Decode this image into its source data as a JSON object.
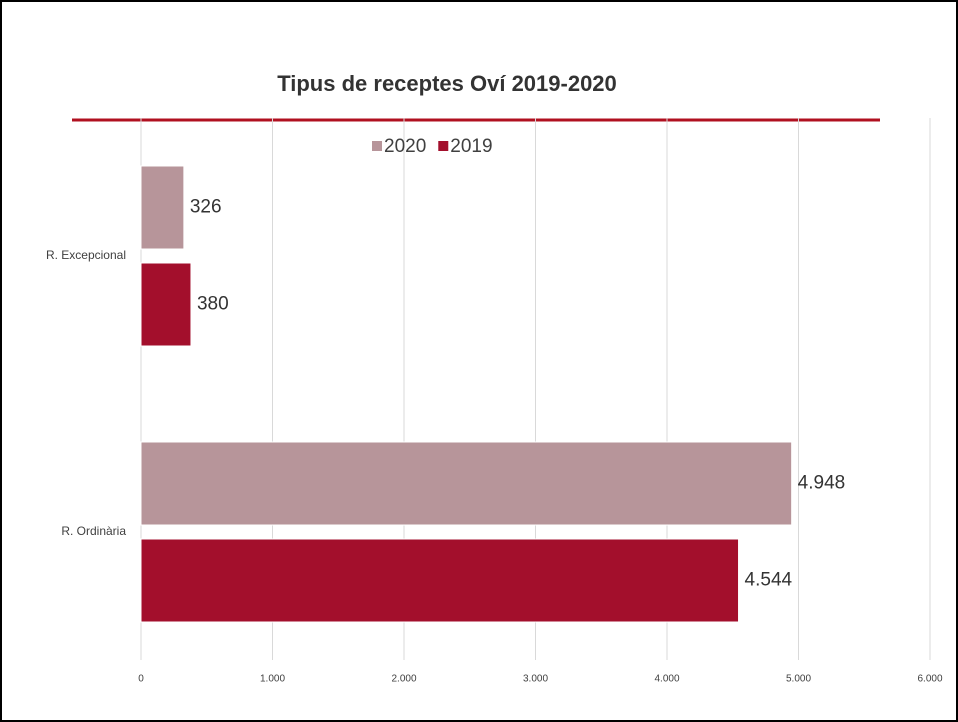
{
  "chart_data": {
    "type": "bar",
    "orientation": "horizontal",
    "title": "Tipus de receptes Oví 2019-2020",
    "categories": [
      "R. Excepcional",
      "R. Ordinària"
    ],
    "series": [
      {
        "name": "2020",
        "color": "#b7959a",
        "values": [
          326,
          4948
        ],
        "value_labels": [
          "326",
          "4.948"
        ]
      },
      {
        "name": "2019",
        "color": "#a30f2c",
        "values": [
          380,
          4544
        ],
        "value_labels": [
          "380",
          "4.544"
        ]
      }
    ],
    "xlim": [
      0,
      6000
    ],
    "xticks": [
      0,
      {
        "value": 1000,
        "label": "1.000"
      },
      {
        "value": 2000,
        "label": "2.000"
      },
      {
        "value": 3000,
        "label": "3.000"
      },
      {
        "value": 4000,
        "label": "4.000"
      },
      {
        "value": 5000,
        "label": "5.000"
      },
      {
        "value": 6000,
        "label": "6.000"
      }
    ],
    "grid": true,
    "legend": "top"
  }
}
